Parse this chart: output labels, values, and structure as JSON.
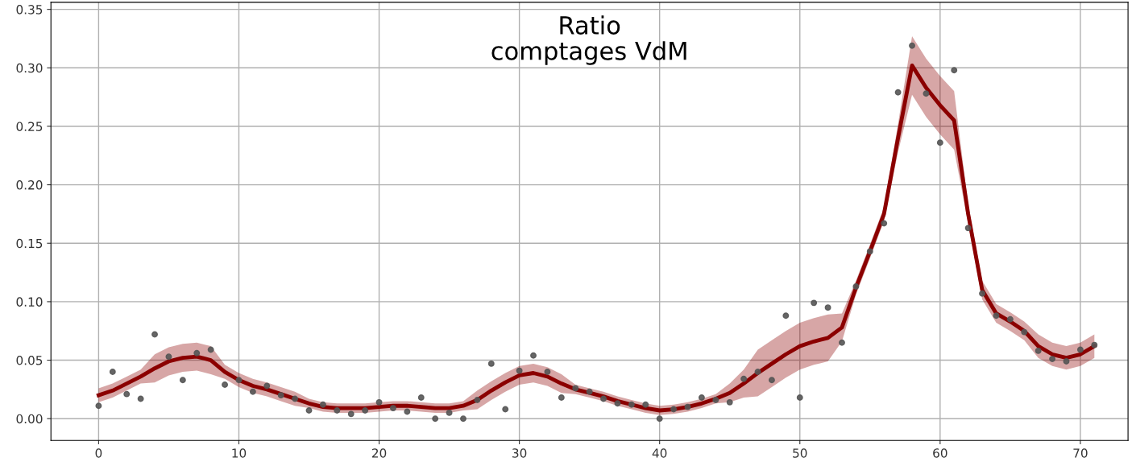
{
  "chart_data": {
    "type": "line",
    "title": "Ratio\ncomptages VdM",
    "x": [
      0,
      1,
      2,
      3,
      4,
      5,
      6,
      7,
      8,
      9,
      10,
      11,
      12,
      13,
      14,
      15,
      16,
      17,
      18,
      19,
      20,
      21,
      22,
      23,
      24,
      25,
      26,
      27,
      28,
      29,
      30,
      31,
      32,
      33,
      34,
      35,
      36,
      37,
      38,
      39,
      40,
      41,
      42,
      43,
      44,
      45,
      46,
      47,
      48,
      49,
      50,
      51,
      52,
      53,
      54,
      55,
      56,
      57,
      58,
      59,
      60,
      61,
      62,
      63,
      64,
      65,
      66,
      67,
      68,
      69,
      70,
      71
    ],
    "series": [
      {
        "color": "#8b0000",
        "marker": "none",
        "line_style": "solid",
        "values": [
          0.02,
          0.024,
          0.03,
          0.036,
          0.043,
          0.049,
          0.052,
          0.053,
          0.05,
          0.04,
          0.033,
          0.028,
          0.025,
          0.021,
          0.017,
          0.013,
          0.01,
          0.009,
          0.009,
          0.009,
          0.01,
          0.011,
          0.011,
          0.01,
          0.009,
          0.009,
          0.011,
          0.016,
          0.024,
          0.031,
          0.037,
          0.039,
          0.036,
          0.03,
          0.025,
          0.022,
          0.019,
          0.015,
          0.012,
          0.009,
          0.007,
          0.008,
          0.01,
          0.013,
          0.017,
          0.022,
          0.03,
          0.039,
          0.047,
          0.055,
          0.062,
          0.066,
          0.069,
          0.078,
          0.112,
          0.143,
          0.175,
          0.24,
          0.302,
          0.283,
          0.268,
          0.255,
          0.175,
          0.11,
          0.09,
          0.083,
          0.075,
          0.062,
          0.055,
          0.052,
          0.055,
          0.062
        ],
        "lower": [
          0.014,
          0.018,
          0.024,
          0.03,
          0.031,
          0.037,
          0.04,
          0.041,
          0.038,
          0.034,
          0.027,
          0.022,
          0.019,
          0.015,
          0.011,
          0.009,
          0.006,
          0.005,
          0.005,
          0.005,
          0.006,
          0.007,
          0.007,
          0.006,
          0.005,
          0.005,
          0.007,
          0.008,
          0.016,
          0.023,
          0.029,
          0.031,
          0.028,
          0.022,
          0.021,
          0.018,
          0.015,
          0.011,
          0.008,
          0.005,
          0.003,
          0.004,
          0.006,
          0.009,
          0.013,
          0.014,
          0.018,
          0.019,
          0.027,
          0.035,
          0.042,
          0.046,
          0.049,
          0.066,
          0.106,
          0.137,
          0.169,
          0.228,
          0.277,
          0.258,
          0.243,
          0.23,
          0.167,
          0.102,
          0.082,
          0.075,
          0.067,
          0.052,
          0.045,
          0.042,
          0.045,
          0.052
        ],
        "upper": [
          0.026,
          0.03,
          0.036,
          0.042,
          0.055,
          0.061,
          0.064,
          0.065,
          0.062,
          0.046,
          0.039,
          0.034,
          0.031,
          0.027,
          0.023,
          0.017,
          0.014,
          0.013,
          0.013,
          0.013,
          0.014,
          0.015,
          0.015,
          0.014,
          0.013,
          0.013,
          0.015,
          0.024,
          0.032,
          0.039,
          0.045,
          0.047,
          0.044,
          0.038,
          0.029,
          0.026,
          0.023,
          0.019,
          0.016,
          0.013,
          0.011,
          0.012,
          0.014,
          0.017,
          0.021,
          0.03,
          0.042,
          0.059,
          0.067,
          0.075,
          0.082,
          0.086,
          0.089,
          0.09,
          0.118,
          0.149,
          0.181,
          0.252,
          0.327,
          0.308,
          0.293,
          0.28,
          0.183,
          0.118,
          0.098,
          0.091,
          0.083,
          0.072,
          0.065,
          0.062,
          0.065,
          0.072
        ]
      },
      {
        "type": "scatter",
        "color": "#555555",
        "marker": "circle",
        "values": [
          0.011,
          0.04,
          0.021,
          0.017,
          0.072,
          0.053,
          0.033,
          0.056,
          0.059,
          0.029,
          0.033,
          0.023,
          0.028,
          0.02,
          0.017,
          0.007,
          0.012,
          0.007,
          0.004,
          0.007,
          0.014,
          0.009,
          0.006,
          0.018,
          0.0,
          0.005,
          0.0,
          0.016,
          0.047,
          0.008,
          0.041,
          0.054,
          0.04,
          0.018,
          0.026,
          0.023,
          0.017,
          0.013,
          0.012,
          0.012,
          0.0,
          0.008,
          0.01,
          0.018,
          0.016,
          0.014,
          0.034,
          0.04,
          0.033,
          0.088,
          0.018,
          0.099,
          0.095,
          0.065,
          0.113,
          0.143,
          0.167,
          0.279,
          0.319,
          0.278,
          0.236,
          0.298,
          0.163,
          0.107,
          0.088,
          0.085,
          0.074,
          0.058,
          0.051,
          0.049,
          0.059,
          0.063
        ]
      }
    ],
    "xlim": [
      -3.4,
      73.4
    ],
    "xticks": [
      0,
      10,
      20,
      30,
      40,
      50,
      60,
      70
    ],
    "ylim": [
      -0.0186,
      0.356
    ],
    "yticks": [
      {
        "value": 0,
        "label": "0.00"
      },
      {
        "value": 0.05,
        "label": "0.05"
      },
      {
        "value": 0.1,
        "label": "0.10"
      },
      {
        "value": 0.15,
        "label": "0.15"
      },
      {
        "value": 0.2,
        "label": "0.20"
      },
      {
        "value": 0.25,
        "label": "0.25"
      },
      {
        "value": 0.3,
        "label": "0.30"
      },
      {
        "value": 0.35,
        "label": "0.35"
      }
    ],
    "grid": true,
    "legend": false
  }
}
